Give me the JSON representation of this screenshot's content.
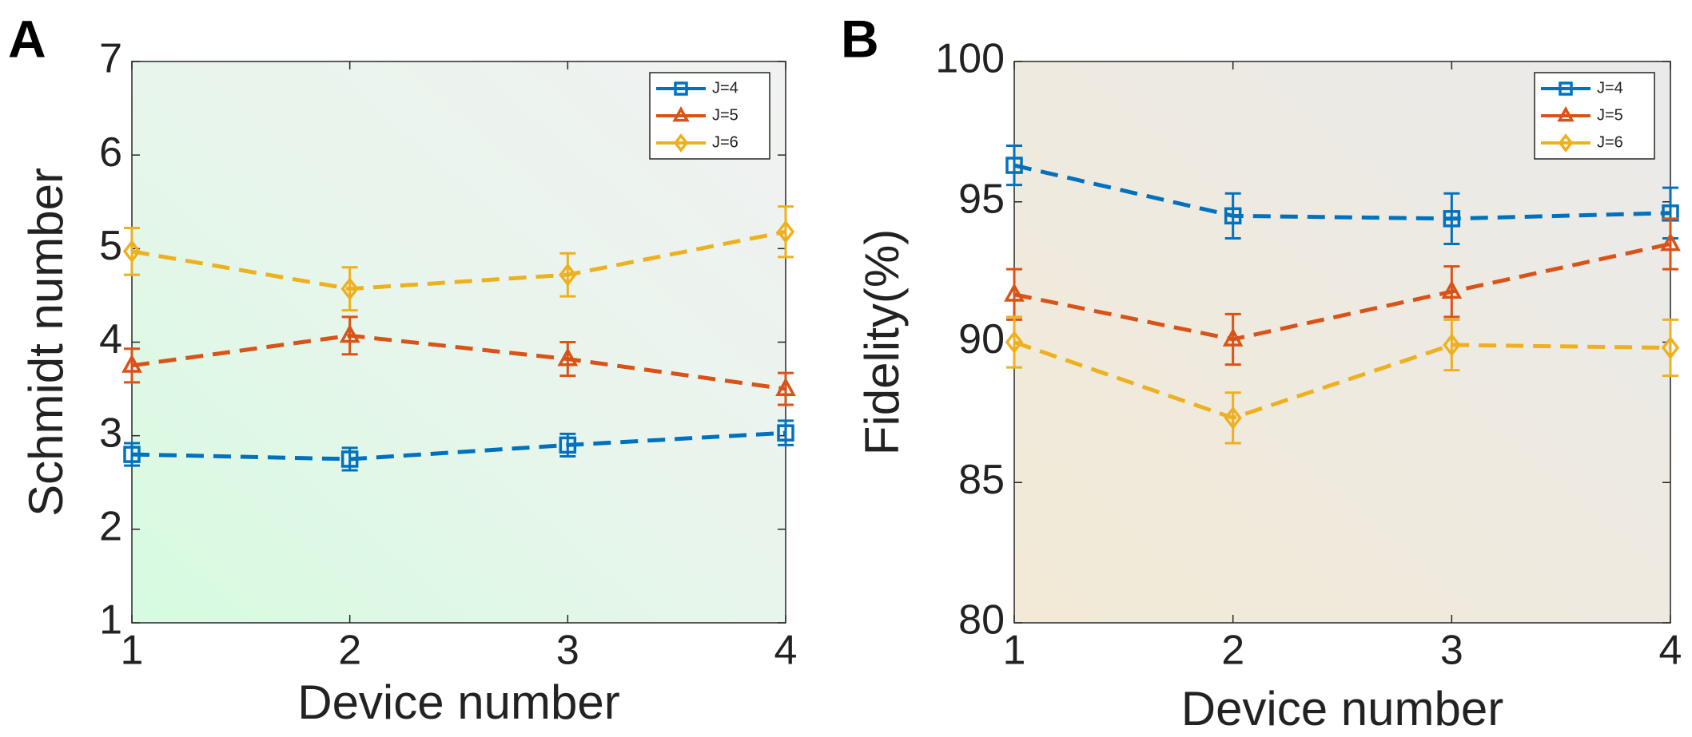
{
  "chart_data": [
    {
      "type": "line",
      "panel": "A",
      "xlabel": "Device number",
      "ylabel": "Schmidt number",
      "x": [
        1,
        2,
        3,
        4
      ],
      "xlim": [
        1,
        4
      ],
      "xticks": [
        1,
        2,
        3,
        4
      ],
      "ylim": [
        1,
        7
      ],
      "yticks": [
        1,
        2,
        3,
        4,
        5,
        6,
        7
      ],
      "legend": "northeast",
      "series": [
        {
          "name": "J=4",
          "color": "#0072BD",
          "marker": "square",
          "values": [
            2.8,
            2.75,
            2.9,
            3.03
          ],
          "errors": [
            0.12,
            0.12,
            0.12,
            0.13
          ]
        },
        {
          "name": "J=5",
          "color": "#D95319",
          "marker": "triangle",
          "values": [
            3.75,
            4.07,
            3.82,
            3.5
          ],
          "errors": [
            0.18,
            0.2,
            0.18,
            0.17
          ]
        },
        {
          "name": "J=6",
          "color": "#EDB120",
          "marker": "diamond",
          "values": [
            4.97,
            4.57,
            4.72,
            5.18
          ],
          "errors": [
            0.25,
            0.23,
            0.23,
            0.27
          ]
        }
      ]
    },
    {
      "type": "line",
      "panel": "B",
      "xlabel": "Device number",
      "ylabel": "Fidelity(%)",
      "x": [
        1,
        2,
        3,
        4
      ],
      "xlim": [
        1,
        4
      ],
      "xticks": [
        1,
        2,
        3,
        4
      ],
      "ylim": [
        80,
        100
      ],
      "yticks": [
        80,
        85,
        90,
        95,
        100
      ],
      "legend": "northeast",
      "series": [
        {
          "name": "J=4",
          "color": "#0072BD",
          "marker": "square",
          "values": [
            96.3,
            94.5,
            94.4,
            94.6
          ],
          "errors": [
            0.7,
            0.8,
            0.9,
            0.9
          ]
        },
        {
          "name": "J=5",
          "color": "#D95319",
          "marker": "triangle",
          "values": [
            91.7,
            90.1,
            91.8,
            93.5
          ],
          "errors": [
            0.9,
            0.9,
            0.9,
            0.9
          ]
        },
        {
          "name": "J=6",
          "color": "#EDB120",
          "marker": "diamond",
          "values": [
            90.0,
            87.3,
            89.9,
            89.8
          ],
          "errors": [
            0.9,
            0.9,
            0.9,
            1.0
          ]
        }
      ]
    }
  ]
}
